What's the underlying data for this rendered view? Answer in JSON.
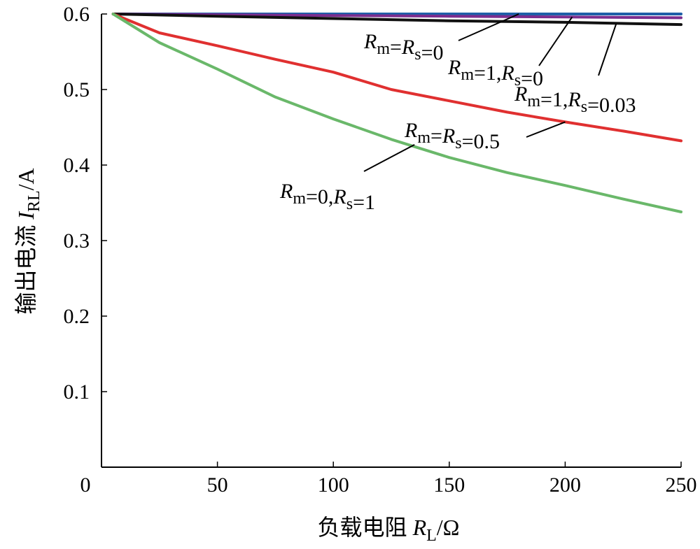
{
  "chart_data": {
    "type": "line",
    "title": "",
    "xlabel": {
      "prefix": "负载电阻 ",
      "var": "R",
      "sub": "L",
      "suffix": "/Ω"
    },
    "ylabel": {
      "prefix": "输出电流 ",
      "var": "I",
      "sub": "RL",
      "suffix": "/A"
    },
    "xlim": [
      0,
      250
    ],
    "ylim": [
      0,
      0.6
    ],
    "xticks": [
      0,
      50,
      100,
      150,
      200,
      250
    ],
    "xtick_labels": [
      "0",
      "50",
      "100",
      "150",
      "200",
      "250"
    ],
    "yticks": [
      0.1,
      0.2,
      0.3,
      0.4,
      0.5,
      0.6
    ],
    "ytick_labels": [
      "0.1",
      "0.2",
      "0.3",
      "0.4",
      "0.5",
      "0.6"
    ],
    "grid": false,
    "series": [
      {
        "color": "#1f5fa8",
        "x": [
          5,
          50,
          100,
          150,
          200,
          250
        ],
        "y": [
          0.6,
          0.6,
          0.6,
          0.6,
          0.6,
          0.6
        ]
      },
      {
        "color": "#7b2d8e",
        "x": [
          5,
          50,
          100,
          150,
          200,
          250
        ],
        "y": [
          0.6,
          0.599,
          0.598,
          0.597,
          0.596,
          0.595
        ]
      },
      {
        "color": "#111111",
        "x": [
          5,
          50,
          100,
          150,
          200,
          250
        ],
        "y": [
          0.6,
          0.597,
          0.594,
          0.591,
          0.589,
          0.586
        ]
      },
      {
        "color": "#e03030",
        "x": [
          5,
          25,
          50,
          75,
          100,
          125,
          150,
          175,
          200,
          225,
          250
        ],
        "y": [
          0.6,
          0.575,
          0.558,
          0.54,
          0.523,
          0.5,
          0.485,
          0.47,
          0.457,
          0.445,
          0.432
        ]
      },
      {
        "color": "#6ab86a",
        "x": [
          5,
          25,
          50,
          75,
          100,
          125,
          150,
          175,
          200,
          225,
          250
        ],
        "y": [
          0.6,
          0.562,
          0.527,
          0.49,
          0.461,
          0.434,
          0.41,
          0.39,
          0.373,
          0.355,
          0.338
        ]
      }
    ],
    "annotations": [
      {
        "parts": [
          {
            "t": "R",
            "i": true
          },
          {
            "t": "m",
            "sub": true
          },
          {
            "t": "="
          },
          {
            "t": "R",
            "i": true
          },
          {
            "t": "s",
            "sub": true
          },
          {
            "t": "=0"
          }
        ],
        "target": [
          180,
          0.6
        ]
      },
      {
        "parts": [
          {
            "t": "R",
            "i": true
          },
          {
            "t": "m",
            "sub": true
          },
          {
            "t": "=1,"
          },
          {
            "t": "R",
            "i": true
          },
          {
            "t": "s",
            "sub": true
          },
          {
            "t": "=0"
          }
        ],
        "target": [
          203,
          0.596
        ]
      },
      {
        "parts": [
          {
            "t": "R",
            "i": true
          },
          {
            "t": "m",
            "sub": true
          },
          {
            "t": "=1,"
          },
          {
            "t": "R",
            "i": true
          },
          {
            "t": "s",
            "sub": true
          },
          {
            "t": "=0.03"
          }
        ],
        "target": [
          222,
          0.587
        ]
      },
      {
        "parts": [
          {
            "t": "R",
            "i": true
          },
          {
            "t": "m",
            "sub": true
          },
          {
            "t": "="
          },
          {
            "t": "R",
            "i": true
          },
          {
            "t": "s",
            "sub": true
          },
          {
            "t": "=0.5"
          }
        ],
        "target": [
          200,
          0.457
        ]
      },
      {
        "parts": [
          {
            "t": "R",
            "i": true
          },
          {
            "t": "m",
            "sub": true
          },
          {
            "t": "=0,"
          },
          {
            "t": "R",
            "i": true
          },
          {
            "t": "s",
            "sub": true
          },
          {
            "t": "=1"
          }
        ],
        "target": [
          135,
          0.427
        ]
      }
    ]
  }
}
